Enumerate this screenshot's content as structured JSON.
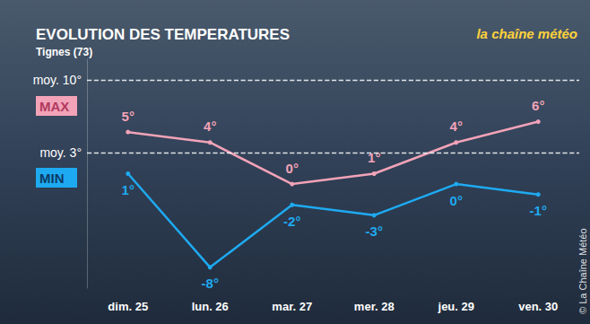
{
  "chart_data": {
    "type": "line",
    "title": "EVOLUTION DES TEMPERATURES",
    "subtitle": "Tignes (73)",
    "logo": "la chaîne météo",
    "credit": "© La Chaîne Météo",
    "categories": [
      "dim. 25",
      "lun. 26",
      "mar. 27",
      "mer. 28",
      "jeu. 29",
      "ven. 30"
    ],
    "series": [
      {
        "name": "MAX",
        "color": "#f2a3b8",
        "values": [
          5,
          4,
          0,
          1,
          4,
          6
        ],
        "value_labels": [
          "5°",
          "4°",
          "0°",
          "1°",
          "4°",
          "6°"
        ]
      },
      {
        "name": "MIN",
        "color": "#1eaaf1",
        "values": [
          1,
          -8,
          -2,
          -3,
          0,
          -1
        ],
        "value_labels": [
          "1°",
          "-8°",
          "-2°",
          "-3°",
          "0°",
          "-1°"
        ]
      }
    ],
    "reference_lines": [
      {
        "value": 10,
        "label": "moy. 10°"
      },
      {
        "value": 3,
        "label": "moy. 3°"
      }
    ],
    "ylim": [
      -10,
      12
    ],
    "data_labels": true,
    "tick_labels": "x",
    "grid": false
  }
}
